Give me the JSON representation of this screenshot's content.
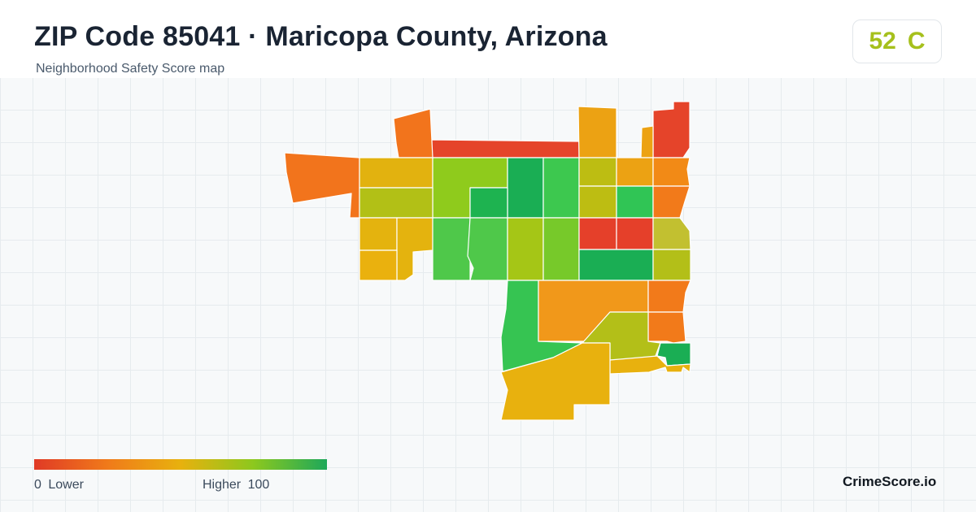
{
  "header": {
    "title": "ZIP Code 85041 · Maricopa County, Arizona",
    "subtitle": "Neighborhood Safety Score map"
  },
  "score_badge": {
    "score": "52",
    "grade": "C",
    "color": "#a6c01c"
  },
  "legend": {
    "min_label": "0",
    "low_label": "Lower",
    "high_label": "Higher",
    "max_label": "100",
    "gradient_colors": [
      "#e03a26",
      "#f07a1a",
      "#e8b10e",
      "#8cc81e",
      "#1ea85a"
    ]
  },
  "brand": "CrimeScore.io",
  "map": {
    "regions": [
      {
        "id": "north-strip",
        "color": "#e5442a"
      },
      {
        "id": "northwest-tab",
        "color": "#f2741c"
      },
      {
        "id": "northeast-tower",
        "color": "#e5442a"
      },
      {
        "id": "north-orange-block",
        "color": "#eca213"
      },
      {
        "id": "north-small-tab",
        "color": "#eca213"
      },
      {
        "id": "west-arm",
        "color": "#f2741c"
      },
      {
        "id": "row1-col1",
        "color": "#e2b20f"
      },
      {
        "id": "row1-col2",
        "color": "#8fcb1c"
      },
      {
        "id": "row1-col3",
        "color": "#1aae54"
      },
      {
        "id": "row1-col4",
        "color": "#3dc84f"
      },
      {
        "id": "row1-col5",
        "color": "#bdbd12"
      },
      {
        "id": "row1-col6",
        "color": "#eca213"
      },
      {
        "id": "row1-col7",
        "color": "#f28a16"
      },
      {
        "id": "row2-col1",
        "color": "#b2c016"
      },
      {
        "id": "row2-col2",
        "color": "#1eb350"
      },
      {
        "id": "row2-col3",
        "color": "#bdbd12"
      },
      {
        "id": "row2-col4",
        "color": "#30c555"
      },
      {
        "id": "row2-col5",
        "color": "#f27a1a"
      },
      {
        "id": "row3-col1a",
        "color": "#e4b30e"
      },
      {
        "id": "row3-col1b",
        "color": "#e4b30e"
      },
      {
        "id": "row3-col2",
        "color": "#4fc84a"
      },
      {
        "id": "row3-col3",
        "color": "#4fc84a"
      },
      {
        "id": "row3-col4",
        "color": "#a5c616"
      },
      {
        "id": "row3-col5",
        "color": "#77c92a"
      },
      {
        "id": "row3-col6",
        "color": "#e5402a"
      },
      {
        "id": "row3-col7",
        "color": "#e5402a"
      },
      {
        "id": "row3-col8",
        "color": "#c2c030"
      },
      {
        "id": "row4-col1",
        "color": "#eab10e"
      },
      {
        "id": "row4-col2",
        "color": "#1aae54"
      },
      {
        "id": "row4-col3",
        "color": "#b3bf18"
      },
      {
        "id": "south-green",
        "color": "#36c452"
      },
      {
        "id": "south-orange",
        "color": "#f1981a"
      },
      {
        "id": "east-orange-upper",
        "color": "#f27a1a"
      },
      {
        "id": "east-orange-lower",
        "color": "#f27a1a"
      },
      {
        "id": "south-olive",
        "color": "#b3bf18"
      },
      {
        "id": "southeast-green",
        "color": "#1aae54"
      },
      {
        "id": "southeast-yellow",
        "color": "#e8b10e"
      },
      {
        "id": "south-yellow",
        "color": "#e8b10e"
      }
    ]
  }
}
